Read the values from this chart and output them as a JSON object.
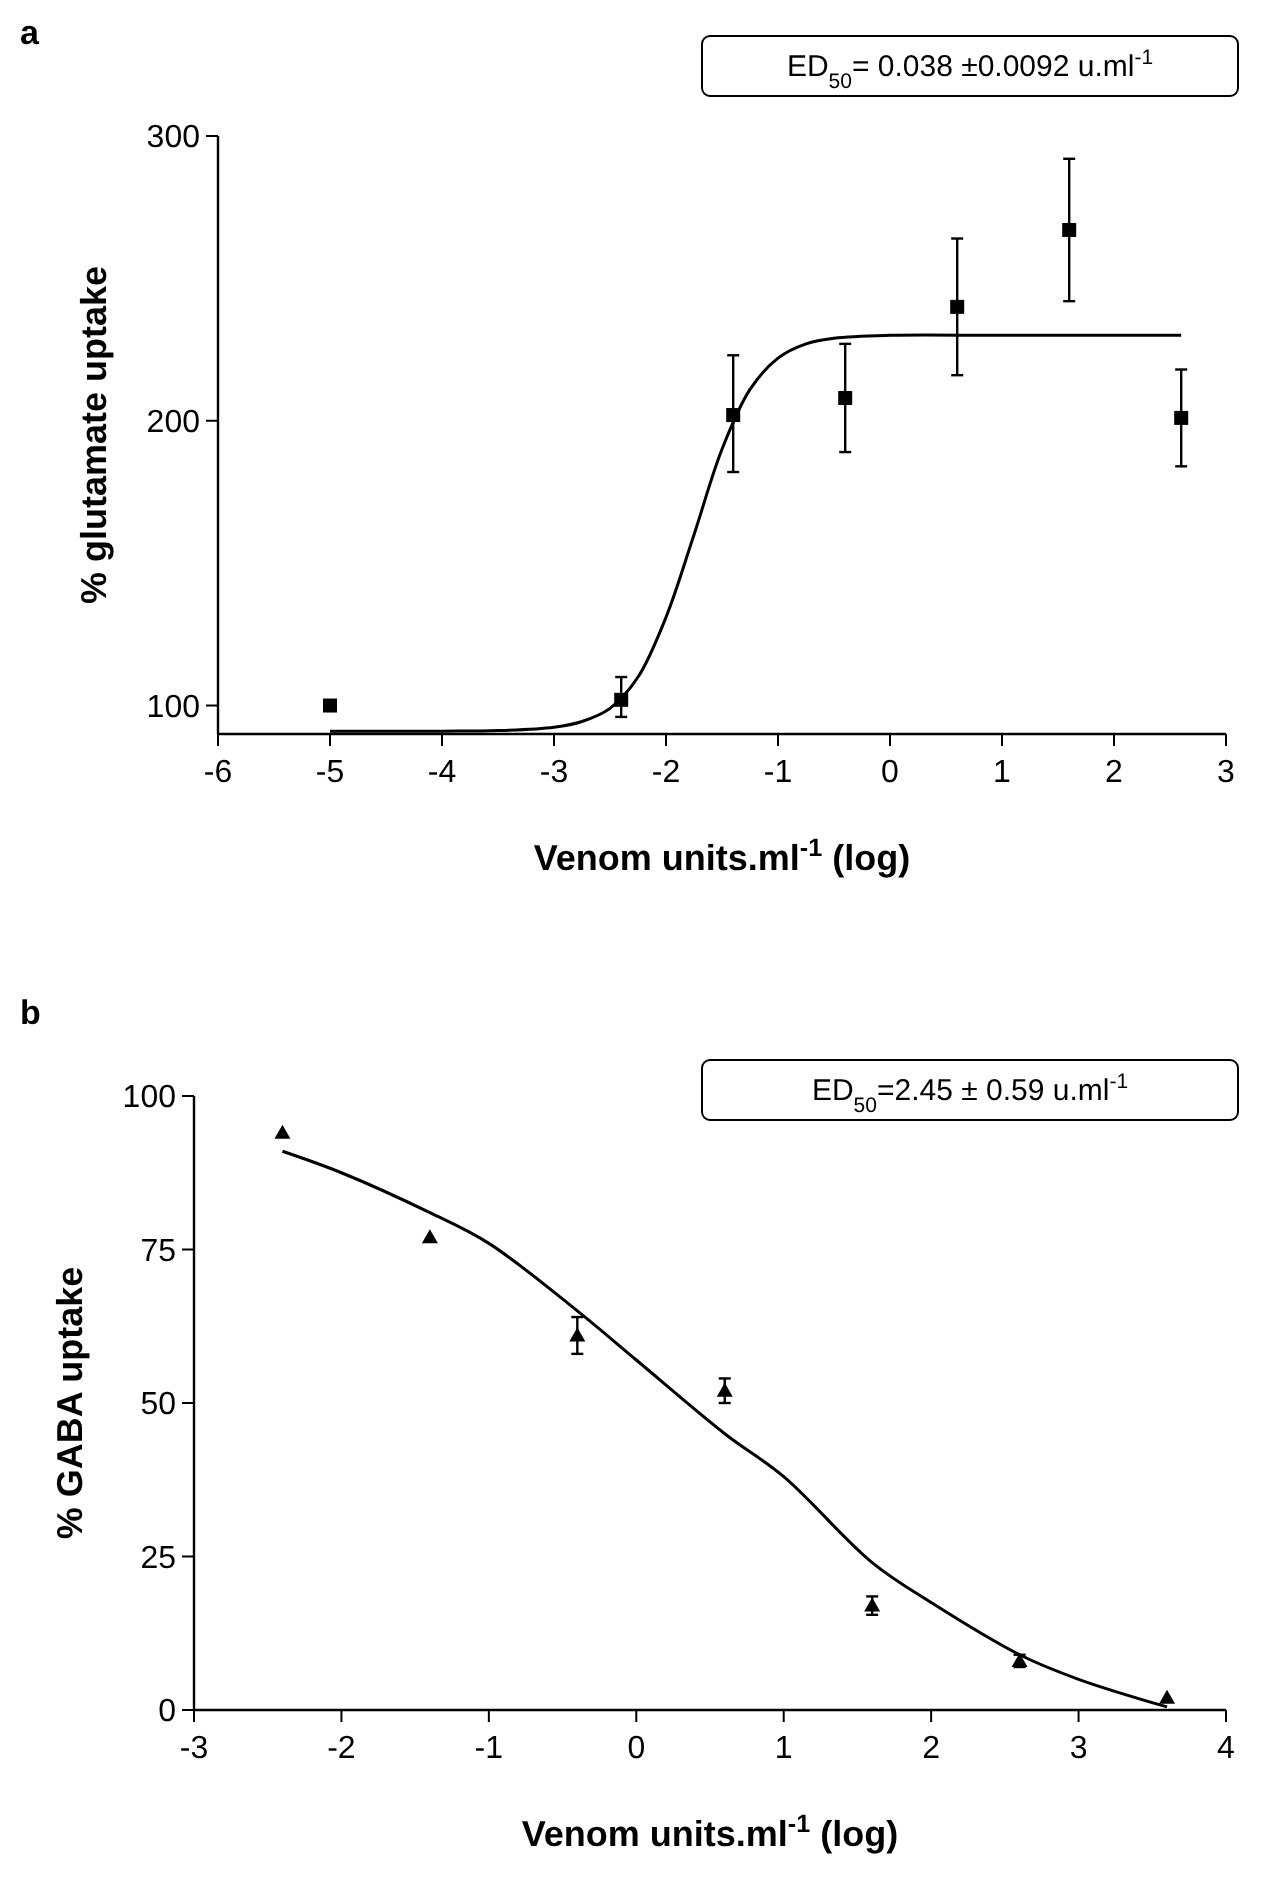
{
  "chart_data": [
    {
      "type": "scatter",
      "title": "a",
      "xlabel": "Venom units.ml$^{-1}$ (log)",
      "ylabel": "% glutamate uptake",
      "xlim": [
        -6,
        3
      ],
      "xticks": [
        -6,
        -5,
        -4,
        -3,
        -2,
        -1,
        0,
        1,
        2,
        3
      ],
      "ylim": [
        90,
        300
      ],
      "yticks": [
        100,
        200,
        300
      ],
      "annotations": [
        "ED$_{50}$= 0.038 ±0.0092 u.ml$^{-1}$"
      ],
      "series": [
        {
          "color": "#000000",
          "marker": "square",
          "x": [
            -5,
            -2.4,
            -1.4,
            -0.4,
            0.6,
            1.6,
            2.6
          ],
          "values": [
            100,
            102,
            202,
            208,
            240,
            267,
            201
          ],
          "errors": [
            null,
            [
              96,
              110
            ],
            [
              182,
              223
            ],
            [
              189,
              227
            ],
            [
              216,
              264
            ],
            [
              242,
              292
            ],
            [
              184,
              218
            ]
          ]
        },
        {
          "type": "line",
          "color": "#000000",
          "marker": "none",
          "line_style": "solid",
          "x": [
            -5,
            -4,
            -3.5,
            -3,
            -2.75,
            -2.5,
            -2.25,
            -2,
            -1.75,
            -1.5,
            -1.25,
            -1,
            -0.75,
            -0.5,
            0,
            1,
            2.6
          ],
          "values": [
            91,
            91,
            91.2,
            92.4,
            94.4,
            99,
            110,
            131,
            160,
            190,
            211,
            222,
            227,
            229,
            230,
            230,
            230
          ]
        }
      ]
    },
    {
      "type": "scatter",
      "title": "b",
      "xlabel": "Venom units.ml$^{-1}$ (log)",
      "ylabel": "% GABA uptake",
      "xlim": [
        -3,
        4
      ],
      "xticks": [
        -3,
        -2,
        -1,
        0,
        1,
        2,
        3,
        4
      ],
      "ylim": [
        0,
        100
      ],
      "yticks": [
        0,
        25,
        50,
        75,
        100
      ],
      "annotations": [
        "ED$_{50}$=2.45 ± 0.59 u.ml$^{-1}$"
      ],
      "series": [
        {
          "color": "#000000",
          "marker": "triangle",
          "x": [
            -2.4,
            -1.4,
            -0.4,
            0.6,
            1.6,
            2.6,
            3.6
          ],
          "values": [
            94,
            77,
            61,
            52,
            17,
            8,
            2
          ],
          "errors": [
            null,
            null,
            [
              58,
              64
            ],
            [
              50,
              54
            ],
            [
              15.5,
              18.5
            ],
            [
              7,
              9
            ],
            null
          ]
        },
        {
          "type": "line",
          "color": "#000000",
          "marker": "none",
          "line_style": "solid",
          "x": [
            -2.4,
            -2,
            -1.4,
            -1,
            -0.4,
            0,
            0.6,
            1,
            1.6,
            2,
            2.6,
            3,
            3.6
          ],
          "values": [
            91,
            87.5,
            81,
            76,
            65,
            57,
            45,
            38,
            24,
            17.5,
            9,
            5,
            0.5
          ]
        }
      ]
    }
  ]
}
